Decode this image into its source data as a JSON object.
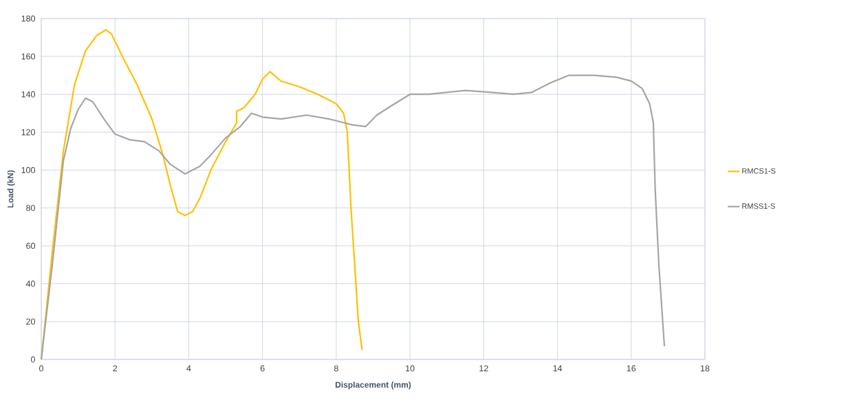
{
  "chart_data": {
    "type": "line",
    "xlabel": "Displacement (mm)",
    "ylabel": "Load (kN)",
    "xlim": [
      0,
      18
    ],
    "ylim": [
      0,
      180
    ],
    "xticks": [
      0,
      2,
      4,
      6,
      8,
      10,
      12,
      14,
      16,
      18
    ],
    "yticks": [
      0,
      20,
      40,
      60,
      80,
      100,
      120,
      140,
      160,
      180
    ],
    "grid": true,
    "legend": "right",
    "marker": "none",
    "line_style": "solid",
    "series": [
      {
        "name": "RMCS1-S",
        "color": "#ffc000",
        "x": [
          0,
          0.3,
          0.6,
          0.9,
          1.2,
          1.5,
          1.75,
          1.9,
          2.2,
          2.6,
          3.0,
          3.3,
          3.5,
          3.7,
          3.9,
          4.1,
          4.3,
          4.6,
          5.0,
          5.3,
          5.3,
          5.5,
          5.8,
          6.0,
          6.2,
          6.5,
          7.0,
          7.5,
          8.0,
          8.2,
          8.3,
          8.4,
          8.5,
          8.6,
          8.7
        ],
        "values": [
          0,
          57,
          110,
          145,
          163,
          171,
          174,
          172,
          160,
          145,
          127,
          108,
          92,
          78,
          76,
          78,
          85,
          100,
          115,
          125,
          131,
          133,
          140,
          148,
          152,
          147,
          144,
          140,
          135,
          130,
          120,
          80,
          50,
          20,
          5
        ]
      },
      {
        "name": "RMSS1-S",
        "color": "#a5a5a5",
        "x": [
          0,
          0.3,
          0.6,
          0.8,
          1.0,
          1.2,
          1.4,
          1.7,
          2.0,
          2.4,
          2.8,
          3.2,
          3.5,
          3.9,
          4.3,
          4.6,
          5.0,
          5.4,
          5.7,
          6.0,
          6.5,
          7.2,
          7.8,
          8.4,
          8.8,
          9.1,
          9.5,
          10.0,
          10.5,
          11.5,
          12.2,
          12.8,
          13.3,
          13.8,
          14.3,
          15.0,
          15.6,
          16.0,
          16.3,
          16.5,
          16.6,
          16.65,
          16.75,
          16.9
        ],
        "values": [
          0,
          50,
          105,
          122,
          132,
          138,
          136,
          127,
          119,
          116,
          115,
          110,
          103,
          98,
          102,
          108,
          117,
          123,
          130,
          128,
          127,
          129,
          127,
          124,
          123,
          129,
          134,
          140,
          140,
          142,
          141,
          140,
          141,
          146,
          150,
          150,
          149,
          147,
          143,
          135,
          125,
          90,
          50,
          7
        ]
      }
    ]
  }
}
